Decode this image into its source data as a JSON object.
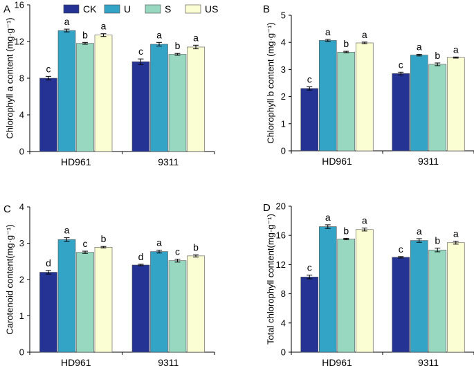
{
  "legend": {
    "items": [
      {
        "label": "CK",
        "color": "#253494"
      },
      {
        "label": "U",
        "color": "#33a3c6"
      },
      {
        "label": "S",
        "color": "#99d8c0"
      },
      {
        "label": "US",
        "color": "#fbfdd3"
      }
    ]
  },
  "chart_data": [
    {
      "type": "bar",
      "panel": "A",
      "ylabel": "Chlorophyll a content (mg·g⁻¹)",
      "categories": [
        "HD961",
        "9311"
      ],
      "ylim": [
        0,
        16
      ],
      "yticks": [
        0,
        4,
        8,
        12,
        16
      ],
      "series": [
        {
          "name": "CK",
          "values": [
            8.0,
            9.8
          ],
          "errors": [
            0.2,
            0.3
          ],
          "letters": [
            "c",
            "c"
          ]
        },
        {
          "name": "U",
          "values": [
            13.2,
            11.7
          ],
          "errors": [
            0.15,
            0.2
          ],
          "letters": [
            "a",
            "a"
          ]
        },
        {
          "name": "S",
          "values": [
            11.8,
            10.6
          ],
          "errors": [
            0.1,
            0.1
          ],
          "letters": [
            "b",
            "b"
          ]
        },
        {
          "name": "US",
          "values": [
            12.7,
            11.4
          ],
          "errors": [
            0.15,
            0.2
          ],
          "letters": [
            "a",
            "a"
          ]
        }
      ]
    },
    {
      "type": "bar",
      "panel": "B",
      "ylabel": "Chlorophyll b content (mg·g⁻¹)",
      "categories": [
        "HD961",
        "9311"
      ],
      "ylim": [
        0,
        5
      ],
      "yticks": [
        0,
        1,
        2,
        3,
        4,
        5
      ],
      "series": [
        {
          "name": "CK",
          "values": [
            2.3,
            2.85
          ],
          "errors": [
            0.06,
            0.05
          ],
          "letters": [
            "c",
            "c"
          ]
        },
        {
          "name": "U",
          "values": [
            4.07,
            3.53
          ],
          "errors": [
            0.04,
            0.03
          ],
          "letters": [
            "a",
            "a"
          ]
        },
        {
          "name": "S",
          "values": [
            3.64,
            3.19
          ],
          "errors": [
            0.03,
            0.05
          ],
          "letters": [
            "b",
            "b"
          ]
        },
        {
          "name": "US",
          "values": [
            3.98,
            3.44
          ],
          "errors": [
            0.03,
            0.02
          ],
          "letters": [
            "a",
            "a"
          ]
        }
      ]
    },
    {
      "type": "bar",
      "panel": "C",
      "ylabel": "Carotenoid content(mg·g⁻¹)",
      "categories": [
        "HD961",
        "9311"
      ],
      "ylim": [
        0,
        4
      ],
      "yticks": [
        0,
        1,
        2,
        3,
        4
      ],
      "series": [
        {
          "name": "CK",
          "values": [
            2.2,
            2.4
          ],
          "errors": [
            0.05,
            0.02
          ],
          "letters": [
            "d",
            "d"
          ]
        },
        {
          "name": "U",
          "values": [
            3.1,
            2.77
          ],
          "errors": [
            0.05,
            0.04
          ],
          "letters": [
            "a",
            "a"
          ]
        },
        {
          "name": "S",
          "values": [
            2.75,
            2.52
          ],
          "errors": [
            0.03,
            0.04
          ],
          "letters": [
            "c",
            "c"
          ]
        },
        {
          "name": "US",
          "values": [
            2.89,
            2.65
          ],
          "errors": [
            0.02,
            0.03
          ],
          "letters": [
            "b",
            "b"
          ]
        }
      ]
    },
    {
      "type": "bar",
      "panel": "D",
      "ylabel": "Total chlorophyll content(mg·g⁻¹)",
      "categories": [
        "HD961",
        "9311"
      ],
      "ylim": [
        0,
        20
      ],
      "yticks": [
        0,
        4,
        8,
        12,
        16,
        20
      ],
      "series": [
        {
          "name": "CK",
          "values": [
            10.3,
            13.0
          ],
          "errors": [
            0.25,
            0.1
          ],
          "letters": [
            "c",
            "c"
          ]
        },
        {
          "name": "U",
          "values": [
            17.2,
            15.3
          ],
          "errors": [
            0.25,
            0.25
          ],
          "letters": [
            "a",
            "a"
          ]
        },
        {
          "name": "S",
          "values": [
            15.5,
            14.0
          ],
          "errors": [
            0.1,
            0.25
          ],
          "letters": [
            "b",
            "b"
          ]
        },
        {
          "name": "US",
          "values": [
            16.8,
            15.0
          ],
          "errors": [
            0.2,
            0.2
          ],
          "letters": [
            "a",
            "a"
          ]
        }
      ]
    }
  ]
}
